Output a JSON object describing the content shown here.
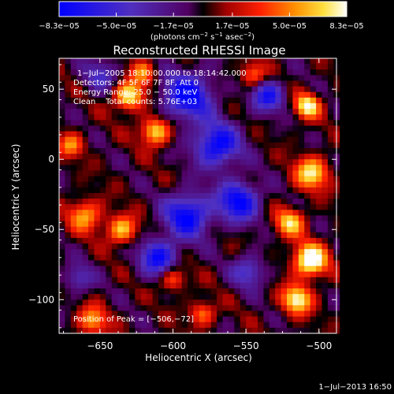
{
  "chart_data": {
    "type": "heatmap",
    "title": "Reconstructed RHESSI Image",
    "xlabel": "Heliocentric X (arcsec)",
    "ylabel": "Heliocentric Y (arcsec)",
    "xlim": [
      -678,
      -488
    ],
    "ylim": [
      -124,
      72
    ],
    "x_ticks": [
      {
        "value": -650,
        "label": "−650"
      },
      {
        "value": -600,
        "label": "−600"
      },
      {
        "value": -550,
        "label": "−550"
      },
      {
        "value": -500,
        "label": "−500"
      }
    ],
    "y_ticks": [
      {
        "value": 50,
        "label": "50"
      },
      {
        "value": 0,
        "label": "0"
      },
      {
        "value": -50,
        "label": "−50"
      },
      {
        "value": -100,
        "label": "−100"
      }
    ],
    "colorbar": {
      "range": [
        -8.3e-05,
        8.3e-05
      ],
      "tick_labels": [
        "−8.3e−05",
        "−5.0e−05",
        "−1.7e−05",
        "1.7e−05",
        "5.0e−05",
        "8.3e−05"
      ],
      "unit_prefix": "(photons cm",
      "unit_exp1": "−2",
      "unit_mid": " s",
      "unit_exp2": "−1",
      "unit_mid2": " asec",
      "unit_exp3": "−2",
      "unit_suffix": ")"
    },
    "annotations": {
      "time_range": "1−Jul−2005 18:10:00.000 to 18:14:42.000",
      "detectors": "Detectors: 4F 5F 6F 7F 8F, Att 0",
      "energy": "Energy Range: 25.0 − 50.0 keV",
      "clean": "Clean    Total counts: 5.76E+03",
      "peak": "Position of Peak = [−506,−72]"
    },
    "sources": [
      {
        "x": -630,
        "y": 45,
        "w": 1.0,
        "s": 7
      },
      {
        "x": -612,
        "y": 20,
        "w": 0.9,
        "s": 7
      },
      {
        "x": -660,
        "y": -40,
        "w": 0.7,
        "s": 8
      },
      {
        "x": -635,
        "y": -50,
        "w": 0.8,
        "s": 7
      },
      {
        "x": -600,
        "y": -85,
        "w": 0.6,
        "s": 6
      },
      {
        "x": -508,
        "y": 38,
        "w": 1.0,
        "s": 6
      },
      {
        "x": -505,
        "y": -10,
        "w": 0.9,
        "s": 8
      },
      {
        "x": -520,
        "y": -45,
        "w": 0.8,
        "s": 7
      },
      {
        "x": -506,
        "y": -72,
        "w": 1.2,
        "s": 8
      },
      {
        "x": -515,
        "y": -100,
        "w": 1.0,
        "s": 7
      },
      {
        "x": -655,
        "y": -115,
        "w": 0.7,
        "s": 7
      },
      {
        "x": -545,
        "y": 60,
        "w": 0.6,
        "s": 6
      },
      {
        "x": -620,
        "y": 62,
        "w": 0.6,
        "s": 6
      },
      {
        "x": -670,
        "y": 10,
        "w": 0.6,
        "s": 6
      },
      {
        "x": -580,
        "y": -110,
        "w": 0.6,
        "s": 6
      },
      {
        "x": -590,
        "y": 45,
        "w": -1.0,
        "s": 12
      },
      {
        "x": -570,
        "y": 10,
        "w": -1.0,
        "s": 11
      },
      {
        "x": -555,
        "y": -30,
        "w": -1.0,
        "s": 10
      },
      {
        "x": -590,
        "y": -40,
        "w": -1.0,
        "s": 11
      },
      {
        "x": -610,
        "y": -70,
        "w": -0.9,
        "s": 9
      },
      {
        "x": -535,
        "y": 45,
        "w": -0.8,
        "s": 8
      },
      {
        "x": -650,
        "y": 60,
        "w": -0.5,
        "s": 8
      },
      {
        "x": -665,
        "y": -85,
        "w": -0.5,
        "s": 7
      },
      {
        "x": -548,
        "y": -80,
        "w": -0.6,
        "s": 8
      }
    ]
  },
  "footer": {
    "timestamp": "1−Jul−2013 16:50"
  }
}
